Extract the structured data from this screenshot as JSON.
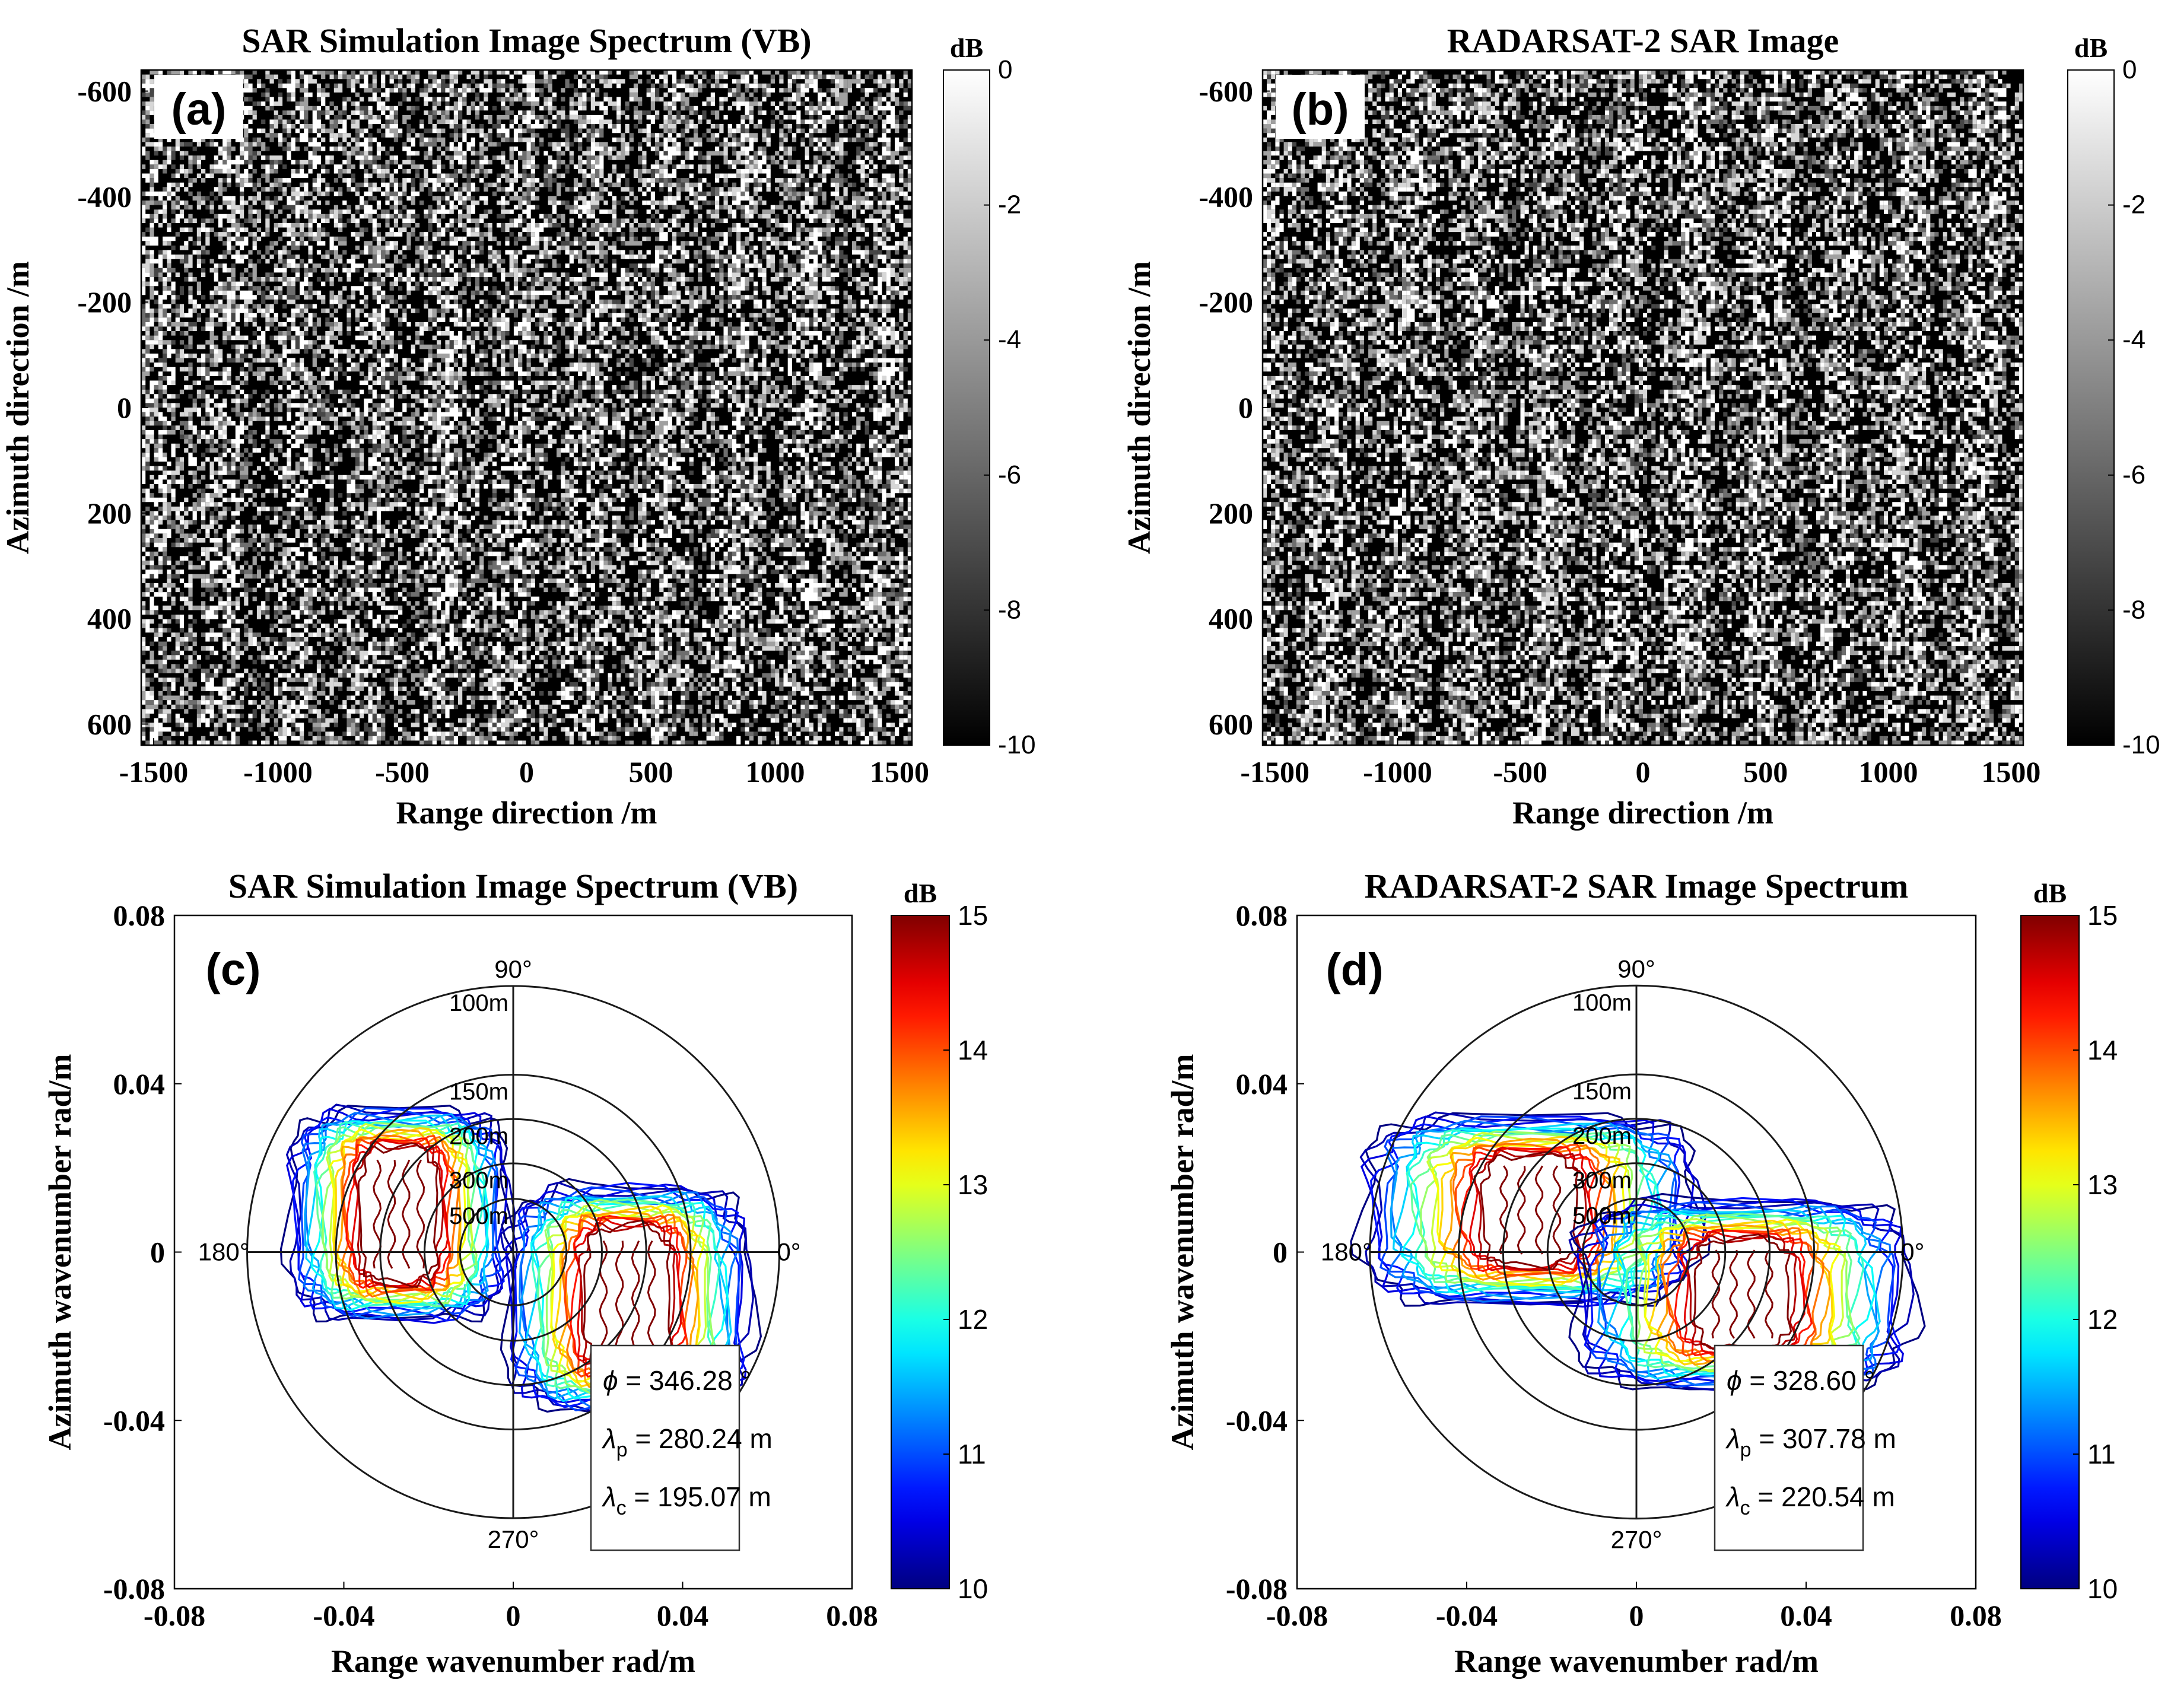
{
  "chart_data": [
    {
      "panel": "a",
      "type": "heatmap",
      "title": "SAR Simulation Image Spectrum (VB)",
      "xlabel": "Range direction /m",
      "ylabel": "Azimuth direction /m",
      "xlim": [
        -1550,
        1550
      ],
      "ylim": [
        -640,
        640
      ],
      "xticks": [
        -1500,
        -1000,
        -500,
        0,
        500,
        1000,
        1500
      ],
      "yticks": [
        -600,
        -400,
        -200,
        0,
        200,
        400,
        600
      ],
      "colorbar": {
        "label": "dB",
        "min": -10,
        "max": 0,
        "ticks": [
          0,
          -2,
          -4,
          -6,
          -8,
          -10
        ],
        "colormap": "gray"
      },
      "texture": "speckle noise with vertical streaks"
    },
    {
      "panel": "b",
      "type": "heatmap",
      "title": "RADARSAT-2 SAR Image",
      "xlabel": "Range direction /m",
      "ylabel": "Azimuth direction /m",
      "xlim": [
        -1550,
        1550
      ],
      "ylim": [
        -640,
        640
      ],
      "xticks": [
        -1500,
        -1000,
        -500,
        0,
        500,
        1000,
        1500
      ],
      "yticks": [
        -600,
        -400,
        -200,
        0,
        200,
        400,
        600
      ],
      "colorbar": {
        "label": "dB",
        "min": -10,
        "max": 0,
        "ticks": [
          0,
          -2,
          -4,
          -6,
          -8,
          -10
        ],
        "colormap": "gray"
      },
      "texture": "speckle noise with vertical streaks"
    },
    {
      "panel": "c",
      "type": "contour",
      "title": "SAR Simulation Image Spectrum (VB)",
      "xlabel": "Range wavenumber rad/m",
      "ylabel": "Azimuth wavenumber  rad/m",
      "xlim": [
        -0.08,
        0.08
      ],
      "ylim": [
        -0.08,
        0.08
      ],
      "xticks": [
        -0.08,
        -0.04,
        0,
        0.04,
        0.08
      ],
      "yticks": [
        0.08,
        0.04,
        0,
        -0.04,
        -0.08
      ],
      "colorbar": {
        "label": "dB",
        "min": 10,
        "max": 15,
        "ticks": [
          15,
          14,
          13,
          12,
          11,
          10
        ],
        "colormap": "jet"
      },
      "polar_grid": {
        "wavelength_labels": [
          "100m",
          "150m",
          "200m",
          "300m",
          "500m"
        ],
        "wavelengths_m": [
          100,
          150,
          200,
          300,
          500
        ],
        "angle_labels": [
          "90°",
          "180°",
          "0°",
          "270°"
        ]
      },
      "peaks": [
        {
          "kx": -0.027,
          "ky": 0.009,
          "half_width_kx": 0.009,
          "half_height_ky": 0.016
        },
        {
          "kx": 0.027,
          "ky": -0.011,
          "half_width_kx": 0.01,
          "half_height_ky": 0.017
        }
      ],
      "annotation": {
        "phi_label": "ϕ",
        "phi": "= 346.28 °",
        "lp_label": "λ",
        "lp_sub": "p",
        "lp": "= 280.24 m",
        "lc_label": "λ",
        "lc_sub": "c",
        "lc": "= 195.07 m"
      }
    },
    {
      "panel": "d",
      "type": "contour",
      "title": "RADARSAT-2 SAR Image Spectrum",
      "xlabel": "Range wavenumber rad/m",
      "ylabel": "Azimuth wavenumber  rad/m",
      "xlim": [
        -0.08,
        0.08
      ],
      "ylim": [
        -0.08,
        0.08
      ],
      "xticks": [
        -0.08,
        -0.04,
        0,
        0.04,
        0.08
      ],
      "yticks": [
        0.08,
        0.04,
        0,
        -0.04,
        -0.08
      ],
      "colorbar": {
        "label": "dB",
        "min": 10,
        "max": 15,
        "ticks": [
          15,
          14,
          13,
          12,
          11,
          10
        ],
        "colormap": "jet"
      },
      "polar_grid": {
        "wavelength_labels": [
          "100m",
          "150m",
          "200m",
          "300m",
          "500m"
        ],
        "wavelengths_m": [
          100,
          150,
          200,
          300,
          500
        ],
        "angle_labels": [
          "90°",
          "180°",
          "0°",
          "270°"
        ]
      },
      "peaks": [
        {
          "kx": -0.025,
          "ky": 0.01,
          "half_width_kx": 0.011,
          "half_height_ky": 0.013
        },
        {
          "kx": 0.025,
          "ky": -0.01,
          "half_width_kx": 0.011,
          "half_height_ky": 0.013
        }
      ],
      "annotation": {
        "phi_label": "ϕ",
        "phi": "= 328.60 °",
        "lp_label": "λ",
        "lp_sub": "p",
        "lp": "= 307.78 m",
        "lc_label": "λ",
        "lc_sub": "c",
        "lc": "= 220.54 m"
      }
    }
  ]
}
